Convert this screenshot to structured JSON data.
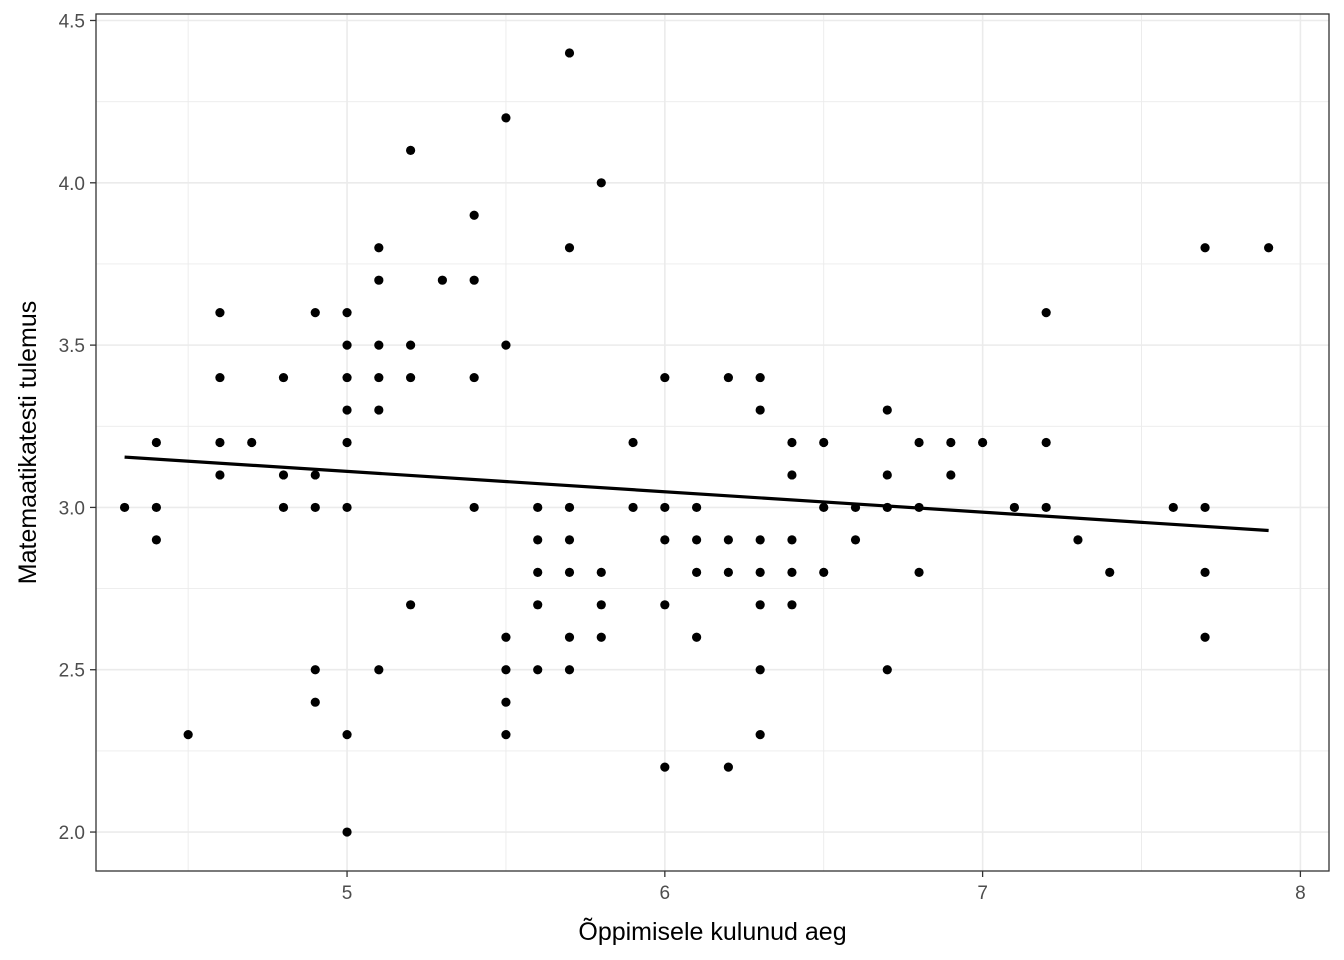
{
  "chart_data": {
    "type": "scatter",
    "title": "",
    "xlabel": "Õppimisele kulunud aeg",
    "ylabel": "Matemaatikatesti tulemus",
    "xlim": [
      4.21,
      8.09
    ],
    "ylim": [
      1.88,
      4.52
    ],
    "x_ticks": [
      5,
      6,
      7,
      8
    ],
    "x_tick_labels": [
      "5",
      "6",
      "7",
      "8"
    ],
    "y_ticks": [
      2.0,
      2.5,
      3.0,
      3.5,
      4.0,
      4.5
    ],
    "y_tick_labels": [
      "2.0",
      "2.5",
      "3.0",
      "3.5",
      "4.0",
      "4.5"
    ],
    "grid": true,
    "legend": "none",
    "colors": {
      "points": "#000000",
      "line": "#000000",
      "grid": "#ebebeb",
      "panel_border": "#333333"
    },
    "points": [
      [
        4.3,
        3.0
      ],
      [
        4.4,
        3.2
      ],
      [
        4.4,
        3.0
      ],
      [
        4.4,
        2.9
      ],
      [
        4.5,
        2.3
      ],
      [
        4.6,
        3.6
      ],
      [
        4.6,
        3.4
      ],
      [
        4.6,
        3.2
      ],
      [
        4.6,
        3.1
      ],
      [
        4.7,
        3.2
      ],
      [
        4.8,
        3.4
      ],
      [
        4.8,
        3.1
      ],
      [
        4.8,
        3.0
      ],
      [
        4.9,
        3.6
      ],
      [
        4.9,
        3.1
      ],
      [
        4.9,
        3.0
      ],
      [
        4.9,
        2.5
      ],
      [
        4.9,
        2.4
      ],
      [
        5.0,
        3.6
      ],
      [
        5.0,
        3.5
      ],
      [
        5.0,
        3.4
      ],
      [
        5.0,
        3.3
      ],
      [
        5.0,
        3.2
      ],
      [
        5.0,
        3.0
      ],
      [
        5.0,
        2.3
      ],
      [
        5.0,
        2.0
      ],
      [
        5.1,
        3.8
      ],
      [
        5.1,
        3.7
      ],
      [
        5.1,
        3.5
      ],
      [
        5.1,
        3.4
      ],
      [
        5.1,
        3.3
      ],
      [
        5.1,
        2.5
      ],
      [
        5.2,
        4.1
      ],
      [
        5.2,
        3.5
      ],
      [
        5.2,
        3.4
      ],
      [
        5.2,
        2.7
      ],
      [
        5.3,
        3.7
      ],
      [
        5.4,
        3.9
      ],
      [
        5.4,
        3.7
      ],
      [
        5.4,
        3.4
      ],
      [
        5.4,
        3.0
      ],
      [
        5.5,
        4.2
      ],
      [
        5.5,
        3.5
      ],
      [
        5.5,
        2.6
      ],
      [
        5.5,
        2.5
      ],
      [
        5.5,
        2.4
      ],
      [
        5.5,
        2.3
      ],
      [
        5.6,
        3.0
      ],
      [
        5.6,
        2.9
      ],
      [
        5.6,
        2.8
      ],
      [
        5.6,
        2.7
      ],
      [
        5.6,
        2.5
      ],
      [
        5.7,
        4.4
      ],
      [
        5.7,
        3.8
      ],
      [
        5.7,
        3.0
      ],
      [
        5.7,
        2.9
      ],
      [
        5.7,
        2.8
      ],
      [
        5.7,
        2.6
      ],
      [
        5.7,
        2.5
      ],
      [
        5.8,
        4.0
      ],
      [
        5.8,
        2.8
      ],
      [
        5.8,
        2.7
      ],
      [
        5.8,
        2.6
      ],
      [
        5.9,
        3.2
      ],
      [
        5.9,
        3.0
      ],
      [
        6.0,
        3.4
      ],
      [
        6.0,
        3.0
      ],
      [
        6.0,
        2.9
      ],
      [
        6.0,
        2.7
      ],
      [
        6.0,
        2.2
      ],
      [
        6.1,
        3.0
      ],
      [
        6.1,
        2.9
      ],
      [
        6.1,
        2.8
      ],
      [
        6.1,
        2.6
      ],
      [
        6.2,
        3.4
      ],
      [
        6.2,
        2.9
      ],
      [
        6.2,
        2.8
      ],
      [
        6.2,
        2.2
      ],
      [
        6.3,
        3.4
      ],
      [
        6.3,
        3.3
      ],
      [
        6.3,
        2.9
      ],
      [
        6.3,
        2.8
      ],
      [
        6.3,
        2.7
      ],
      [
        6.3,
        2.5
      ],
      [
        6.3,
        2.3
      ],
      [
        6.4,
        3.2
      ],
      [
        6.4,
        3.1
      ],
      [
        6.4,
        2.9
      ],
      [
        6.4,
        2.8
      ],
      [
        6.4,
        2.7
      ],
      [
        6.5,
        3.2
      ],
      [
        6.5,
        3.0
      ],
      [
        6.5,
        2.8
      ],
      [
        6.6,
        3.0
      ],
      [
        6.6,
        2.9
      ],
      [
        6.7,
        3.3
      ],
      [
        6.7,
        3.1
      ],
      [
        6.7,
        3.0
      ],
      [
        6.7,
        2.5
      ],
      [
        6.8,
        3.2
      ],
      [
        6.8,
        3.0
      ],
      [
        6.8,
        2.8
      ],
      [
        6.9,
        3.2
      ],
      [
        6.9,
        3.1
      ],
      [
        7.0,
        3.2
      ],
      [
        7.1,
        3.0
      ],
      [
        7.2,
        3.6
      ],
      [
        7.2,
        3.2
      ],
      [
        7.2,
        3.0
      ],
      [
        7.3,
        2.9
      ],
      [
        7.4,
        2.8
      ],
      [
        7.6,
        3.0
      ],
      [
        7.7,
        3.8
      ],
      [
        7.7,
        3.0
      ],
      [
        7.7,
        2.8
      ],
      [
        7.7,
        2.6
      ],
      [
        7.9,
        3.8
      ]
    ],
    "trend_line": {
      "x": [
        4.3,
        7.9
      ],
      "y": [
        3.155,
        2.929
      ]
    }
  }
}
